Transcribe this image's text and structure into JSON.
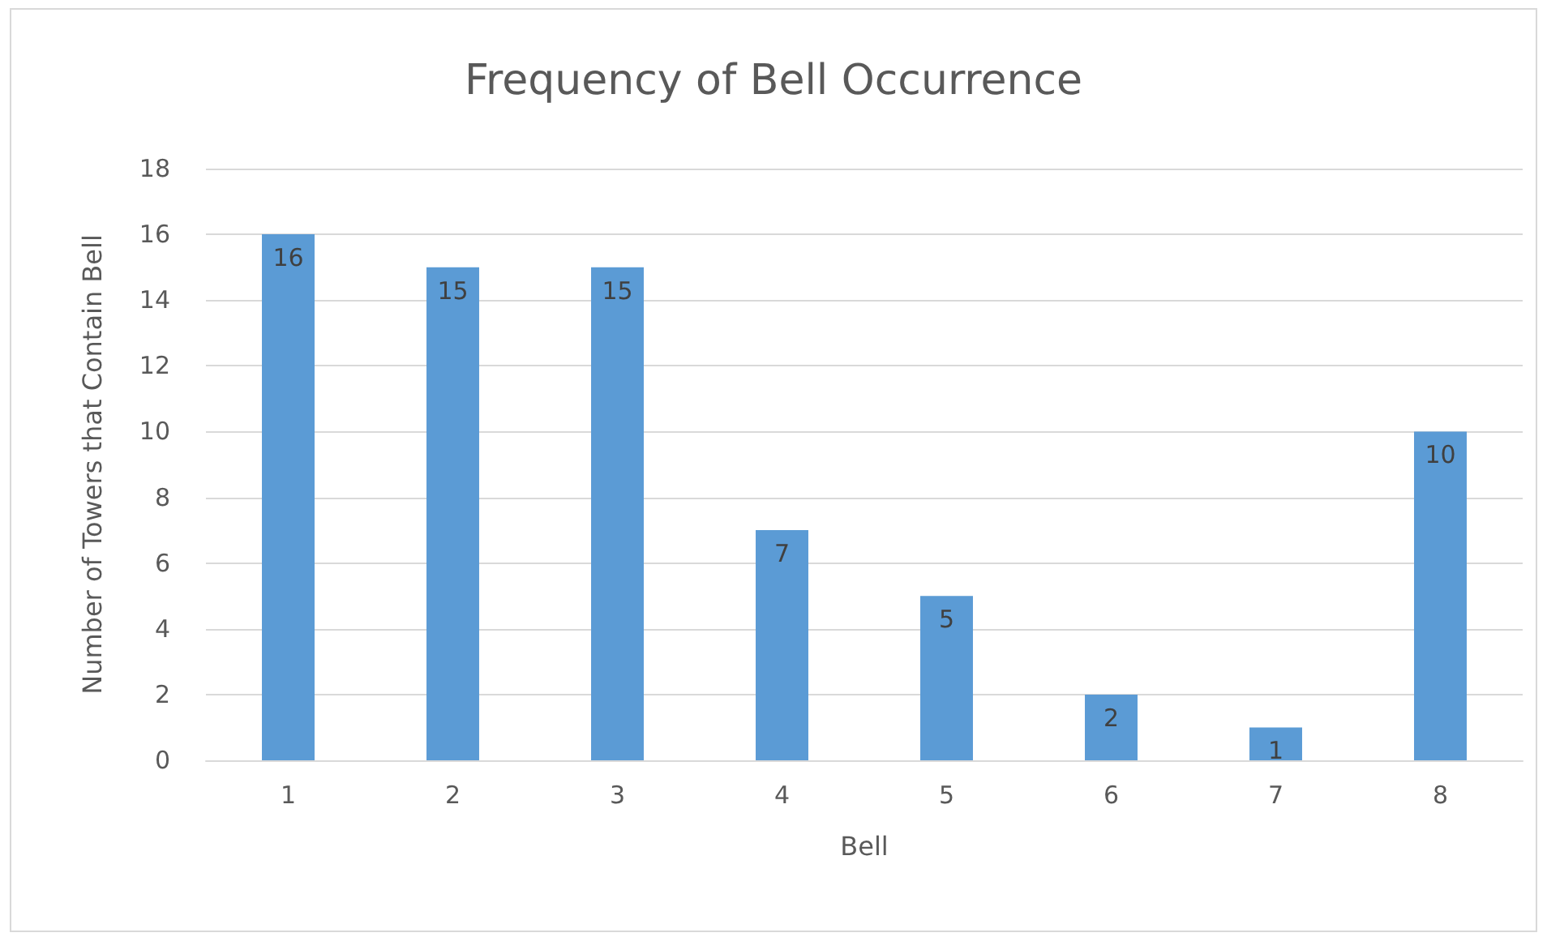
{
  "chart_data": {
    "type": "bar",
    "title": "Frequency of Bell Occurrence",
    "xlabel": "Bell",
    "ylabel": "Number of Towers that Contain Bell",
    "categories": [
      "1",
      "2",
      "3",
      "4",
      "5",
      "6",
      "7",
      "8"
    ],
    "values": [
      16,
      15,
      15,
      7,
      5,
      2,
      1,
      10
    ],
    "color": "#5b9bd5",
    "ylim": [
      0,
      18
    ],
    "yticks": [
      0,
      2,
      4,
      6,
      8,
      10,
      12,
      14,
      16,
      18
    ],
    "grid": "y",
    "data_labels": true
  }
}
